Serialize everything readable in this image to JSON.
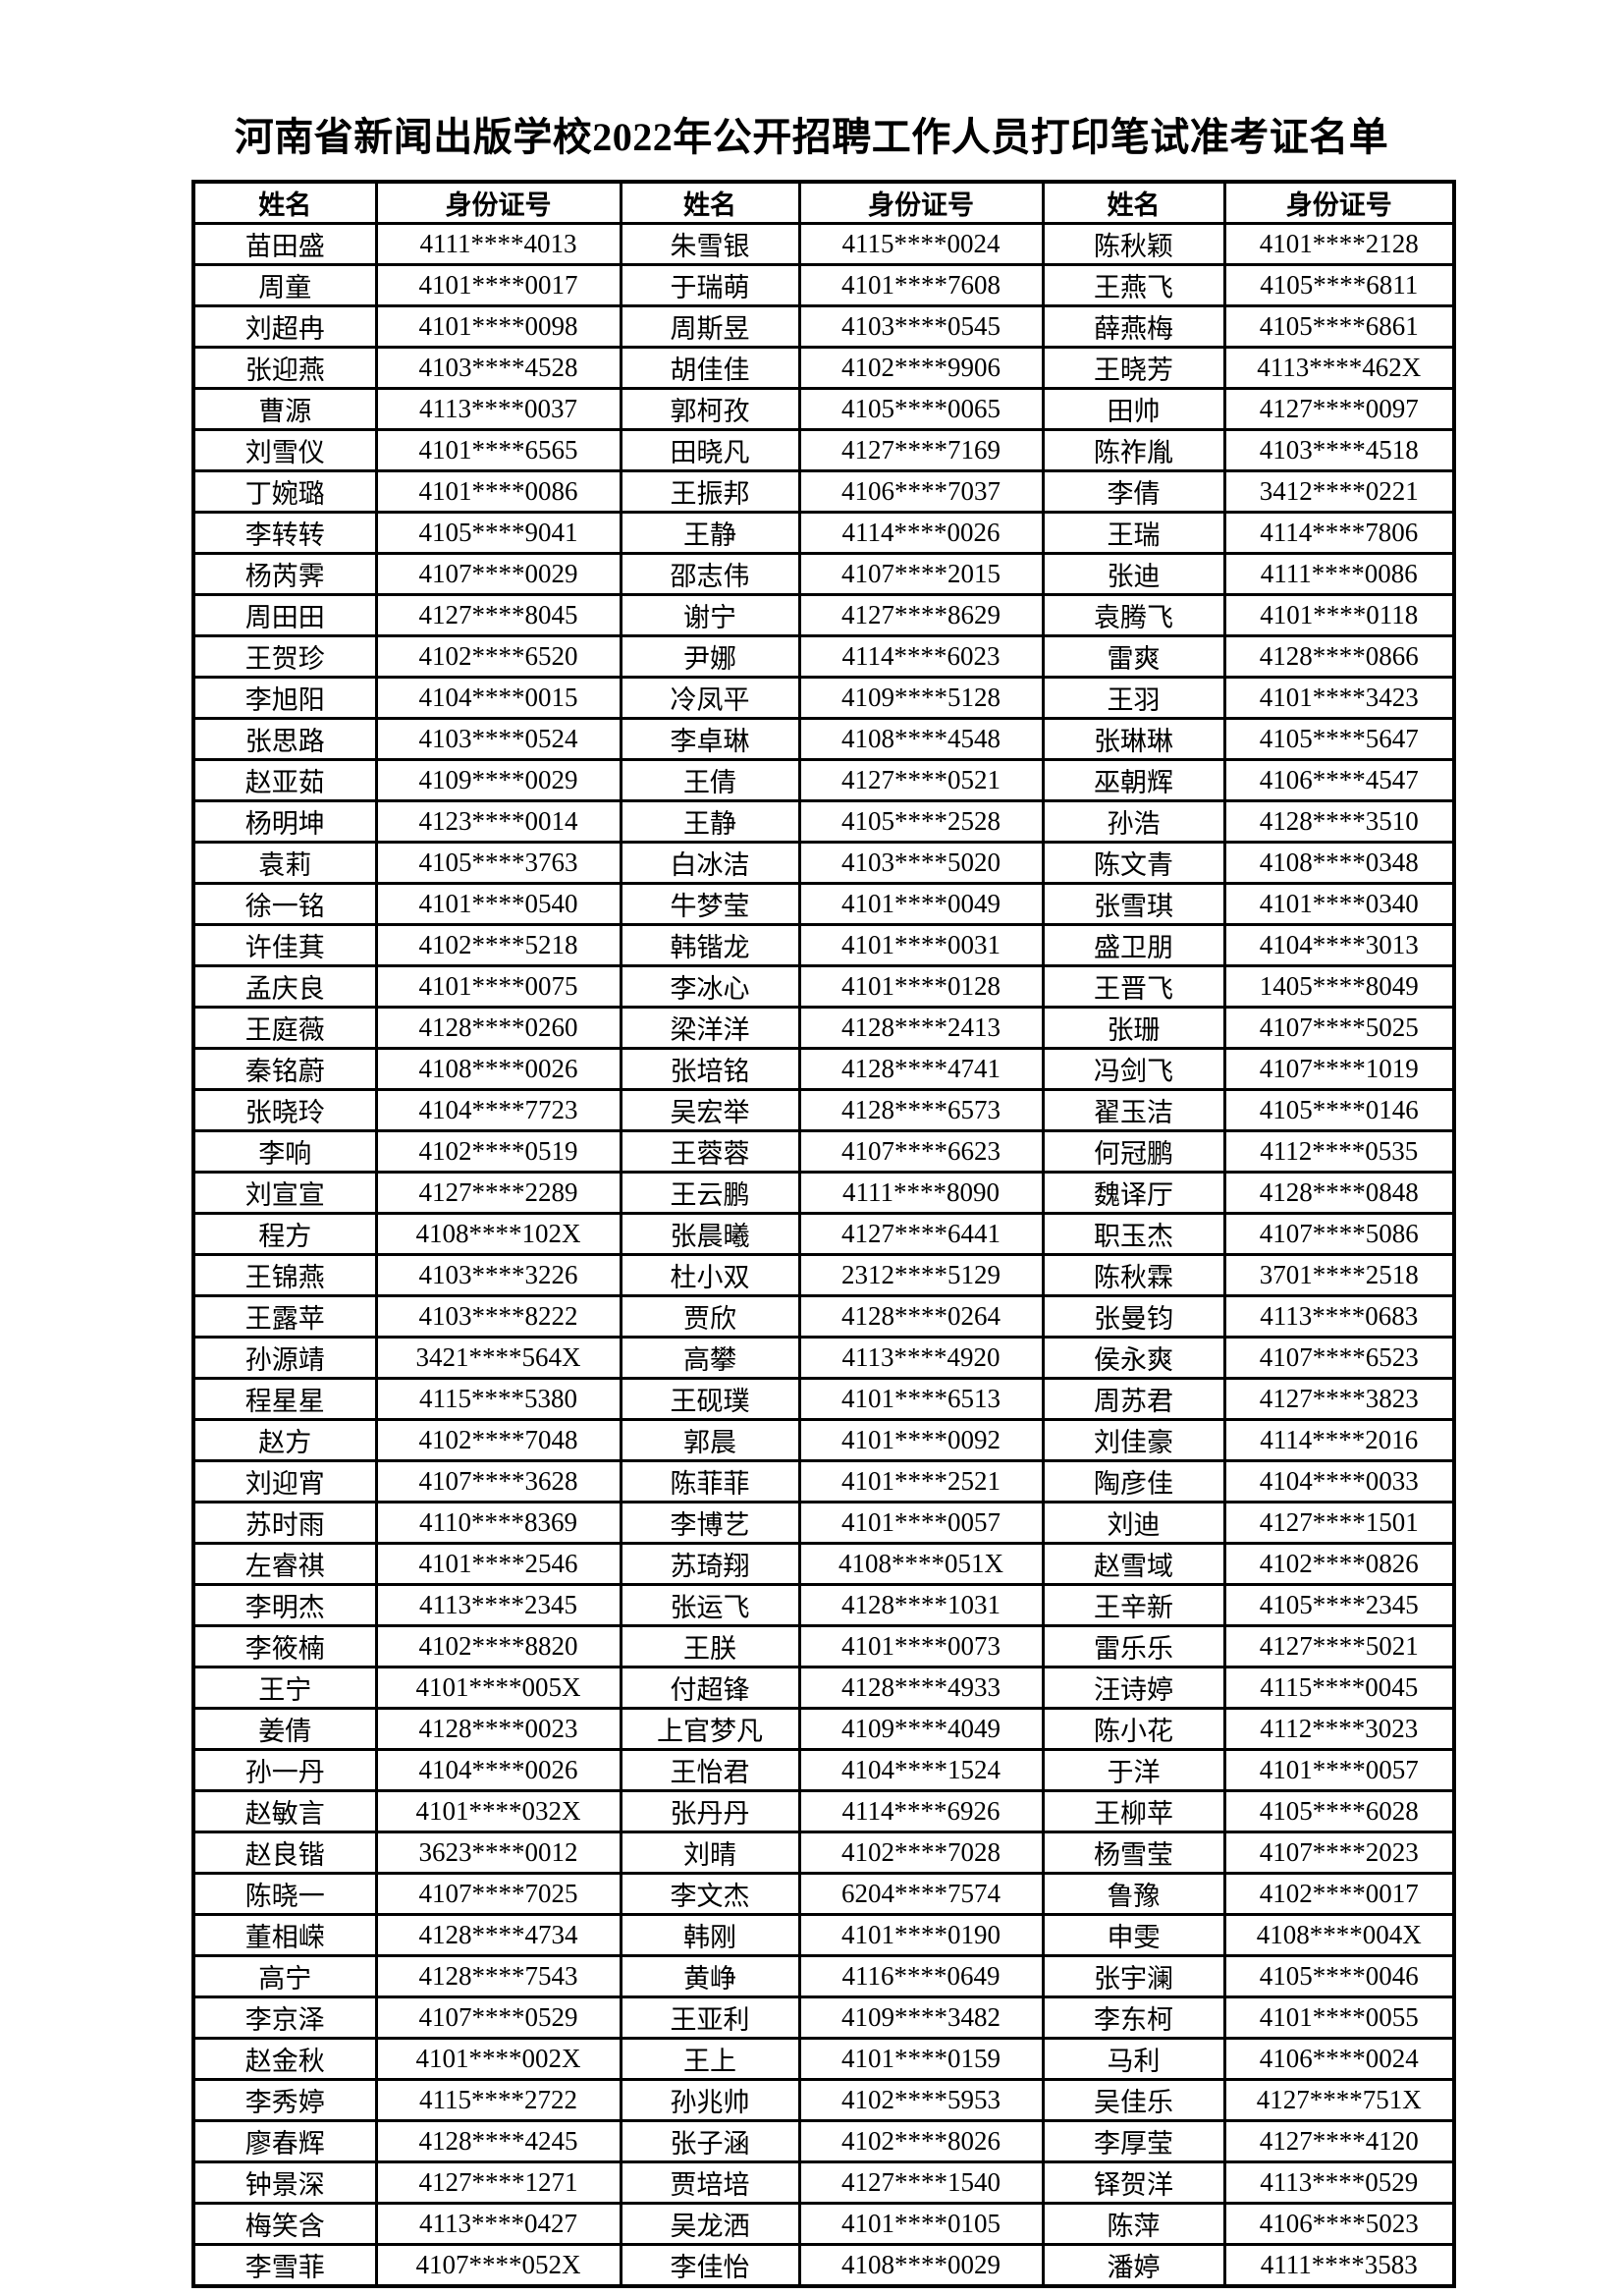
{
  "title": "河南省新闻出版学校2022年公开招聘工作人员打印笔试准考证名单",
  "table": {
    "headers": [
      "姓名",
      "身份证号",
      "姓名",
      "身份证号",
      "姓名",
      "身份证号"
    ],
    "rows": [
      [
        "苗田盛",
        "4111****4013",
        "朱雪银",
        "4115****0024",
        "陈秋颖",
        "4101****2128"
      ],
      [
        "周童",
        "4101****0017",
        "于瑞萌",
        "4101****7608",
        "王燕飞",
        "4105****6811"
      ],
      [
        "刘超冉",
        "4101****0098",
        "周斯昱",
        "4103****0545",
        "薛燕梅",
        "4105****6861"
      ],
      [
        "张迎燕",
        "4103****4528",
        "胡佳佳",
        "4102****9906",
        "王晓芳",
        "4113****462X"
      ],
      [
        "曹源",
        "4113****0037",
        "郭柯孜",
        "4105****0065",
        "田帅",
        "4127****0097"
      ],
      [
        "刘雪仪",
        "4101****6565",
        "田晓凡",
        "4127****7169",
        "陈祚胤",
        "4103****4518"
      ],
      [
        "丁婉璐",
        "4101****0086",
        "王振邦",
        "4106****7037",
        "李倩",
        "3412****0221"
      ],
      [
        "李转转",
        "4105****9041",
        "王静",
        "4114****0026",
        "王瑞",
        "4114****7806"
      ],
      [
        "杨芮霁",
        "4107****0029",
        "邵志伟",
        "4107****2015",
        "张迪",
        "4111****0086"
      ],
      [
        "周田田",
        "4127****8045",
        "谢宁",
        "4127****8629",
        "袁腾飞",
        "4101****0118"
      ],
      [
        "王贺珍",
        "4102****6520",
        "尹娜",
        "4114****6023",
        "雷爽",
        "4128****0866"
      ],
      [
        "李旭阳",
        "4104****0015",
        "冷凤平",
        "4109****5128",
        "王羽",
        "4101****3423"
      ],
      [
        "张思路",
        "4103****0524",
        "李卓琳",
        "4108****4548",
        "张琳琳",
        "4105****5647"
      ],
      [
        "赵亚茹",
        "4109****0029",
        "王倩",
        "4127****0521",
        "巫朝辉",
        "4106****4547"
      ],
      [
        "杨明坤",
        "4123****0014",
        "王静",
        "4105****2528",
        "孙浩",
        "4128****3510"
      ],
      [
        "袁莉",
        "4105****3763",
        "白冰洁",
        "4103****5020",
        "陈文青",
        "4108****0348"
      ],
      [
        "徐一铭",
        "4101****0540",
        "牛梦莹",
        "4101****0049",
        "张雪琪",
        "4101****0340"
      ],
      [
        "许佳萁",
        "4102****5218",
        "韩锴龙",
        "4101****0031",
        "盛卫朋",
        "4104****3013"
      ],
      [
        "孟庆良",
        "4101****0075",
        "李冰心",
        "4101****0128",
        "王晋飞",
        "1405****8049"
      ],
      [
        "王庭薇",
        "4128****0260",
        "梁洋洋",
        "4128****2413",
        "张珊",
        "4107****5025"
      ],
      [
        "秦铭蔚",
        "4108****0026",
        "张培铭",
        "4128****4741",
        "冯剑飞",
        "4107****1019"
      ],
      [
        "张晓玲",
        "4104****7723",
        "吴宏举",
        "4128****6573",
        "翟玉洁",
        "4105****0146"
      ],
      [
        "李响",
        "4102****0519",
        "王蓉蓉",
        "4107****6623",
        "何冠鹏",
        "4112****0535"
      ],
      [
        "刘宣宣",
        "4127****2289",
        "王云鹏",
        "4111****8090",
        "魏译厅",
        "4128****0848"
      ],
      [
        "程方",
        "4108****102X",
        "张晨曦",
        "4127****6441",
        "职玉杰",
        "4107****5086"
      ],
      [
        "王锦燕",
        "4103****3226",
        "杜小双",
        "2312****5129",
        "陈秋霖",
        "3701****2518"
      ],
      [
        "王露苹",
        "4103****8222",
        "贾欣",
        "4128****0264",
        "张曼钧",
        "4113****0683"
      ],
      [
        "孙源靖",
        "3421****564X",
        "高攀",
        "4113****4920",
        "侯永爽",
        "4107****6523"
      ],
      [
        "程星星",
        "4115****5380",
        "王砚璞",
        "4101****6513",
        "周苏君",
        "4127****3823"
      ],
      [
        "赵方",
        "4102****7048",
        "郭晨",
        "4101****0092",
        "刘佳豪",
        "4114****2016"
      ],
      [
        "刘迎宵",
        "4107****3628",
        "陈菲菲",
        "4101****2521",
        "陶彦佳",
        "4104****0033"
      ],
      [
        "苏时雨",
        "4110****8369",
        "李博艺",
        "4101****0057",
        "刘迪",
        "4127****1501"
      ],
      [
        "左睿祺",
        "4101****2546",
        "苏琦翔",
        "4108****051X",
        "赵雪域",
        "4102****0826"
      ],
      [
        "李明杰",
        "4113****2345",
        "张运飞",
        "4128****1031",
        "王辛新",
        "4105****2345"
      ],
      [
        "李筱楠",
        "4102****8820",
        "王朕",
        "4101****0073",
        "雷乐乐",
        "4127****5021"
      ],
      [
        "王宁",
        "4101****005X",
        "付超锋",
        "4128****4933",
        "汪诗婷",
        "4115****0045"
      ],
      [
        "姜倩",
        "4128****0023",
        "上官梦凡",
        "4109****4049",
        "陈小花",
        "4112****3023"
      ],
      [
        "孙一丹",
        "4104****0026",
        "王怡君",
        "4104****1524",
        "于洋",
        "4101****0057"
      ],
      [
        "赵敏言",
        "4101****032X",
        "张丹丹",
        "4114****6926",
        "王柳苹",
        "4105****6028"
      ],
      [
        "赵良锴",
        "3623****0012",
        "刘晴",
        "4102****7028",
        "杨雪莹",
        "4107****2023"
      ],
      [
        "陈晓一",
        "4107****7025",
        "李文杰",
        "6204****7574",
        "鲁豫",
        "4102****0017"
      ],
      [
        "董相嵘",
        "4128****4734",
        "韩刚",
        "4101****0190",
        "申雯",
        "4108****004X"
      ],
      [
        "高宁",
        "4128****7543",
        "黄峥",
        "4116****0649",
        "张宇澜",
        "4105****0046"
      ],
      [
        "李京泽",
        "4107****0529",
        "王亚利",
        "4109****3482",
        "李东柯",
        "4101****0055"
      ],
      [
        "赵金秋",
        "4101****002X",
        "王上",
        "4101****0159",
        "马利",
        "4106****0024"
      ],
      [
        "李秀婷",
        "4115****2722",
        "孙兆帅",
        "4102****5953",
        "吴佳乐",
        "4127****751X"
      ],
      [
        "廖春辉",
        "4128****4245",
        "张子涵",
        "4102****8026",
        "李厚莹",
        "4127****4120"
      ],
      [
        "钟景深",
        "4127****1271",
        "贾培培",
        "4127****1540",
        "铎贺洋",
        "4113****0529"
      ],
      [
        "梅笑含",
        "4113****0427",
        "吴龙洒",
        "4101****0105",
        "陈萍",
        "4106****5023"
      ],
      [
        "李雪菲",
        "4107****052X",
        "李佳怡",
        "4108****0029",
        "潘婷",
        "4111****3583"
      ]
    ]
  }
}
